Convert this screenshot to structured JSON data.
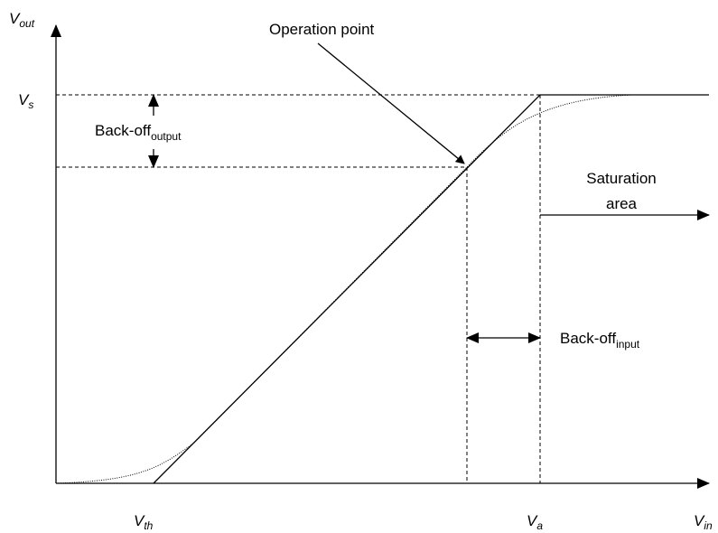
{
  "labels": {
    "y_axis": {
      "base": "V",
      "sub": "out"
    },
    "saturation_level": {
      "base": "V",
      "sub": "s"
    },
    "threshold": {
      "base": "V",
      "sub": "th"
    },
    "saturation_input": {
      "base": "V",
      "sub": "a"
    },
    "x_axis": {
      "base": "V",
      "sub": "in"
    }
  },
  "annotations": {
    "operation_point": "Operation point",
    "back_off_output": {
      "base": "Back-off",
      "sub": "output"
    },
    "back_off_input": {
      "base": "Back-off",
      "sub": "input"
    },
    "saturation_area": [
      "Saturation",
      "area"
    ]
  }
}
